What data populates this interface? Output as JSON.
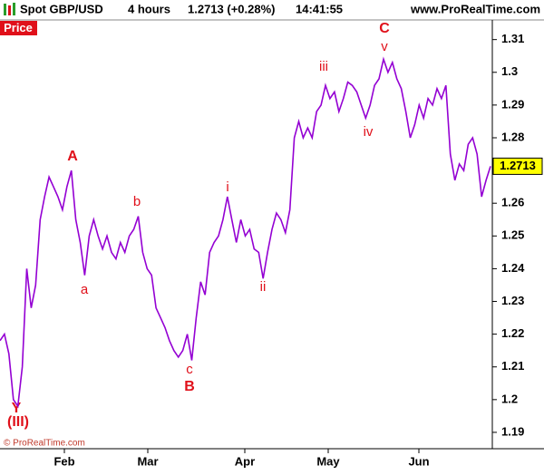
{
  "header": {
    "symbol": "Spot GBP/USD",
    "interval": "4 hours",
    "quote": "1.2713 (+0.28%)",
    "time": "14:41:55",
    "site": "www.ProRealTime.com"
  },
  "chart_data": {
    "type": "line",
    "label": "Price",
    "color": "#9400d3",
    "values": [
      1.218,
      1.22,
      1.214,
      1.2,
      1.198,
      1.21,
      1.24,
      1.228,
      1.235,
      1.255,
      1.262,
      1.268,
      1.265,
      1.262,
      1.258,
      1.265,
      1.27,
      1.255,
      1.248,
      1.238,
      1.25,
      1.255,
      1.25,
      1.246,
      1.25,
      1.245,
      1.243,
      1.248,
      1.245,
      1.25,
      1.252,
      1.256,
      1.245,
      1.24,
      1.238,
      1.228,
      1.225,
      1.222,
      1.218,
      1.215,
      1.213,
      1.215,
      1.22,
      1.212,
      1.225,
      1.236,
      1.232,
      1.245,
      1.248,
      1.25,
      1.255,
      1.262,
      1.255,
      1.248,
      1.255,
      1.25,
      1.252,
      1.246,
      1.245,
      1.237,
      1.245,
      1.252,
      1.257,
      1.255,
      1.251,
      1.258,
      1.28,
      1.285,
      1.28,
      1.283,
      1.28,
      1.288,
      1.29,
      1.296,
      1.292,
      1.294,
      1.288,
      1.292,
      1.297,
      1.296,
      1.294,
      1.29,
      1.286,
      1.29,
      1.296,
      1.298,
      1.304,
      1.3,
      1.303,
      1.298,
      1.295,
      1.288,
      1.28,
      1.284,
      1.29,
      1.286,
      1.292,
      1.29,
      1.295,
      1.292,
      1.296,
      1.275,
      1.267,
      1.272,
      1.27,
      1.278,
      1.28,
      1.275,
      1.262,
      1.267,
      1.2713
    ],
    "months": [
      "Feb",
      "Mar",
      "Apr",
      "May",
      "Jun"
    ],
    "ylim": [
      1.185,
      1.316
    ],
    "yticks": [
      1.19,
      1.2,
      1.21,
      1.22,
      1.23,
      1.24,
      1.25,
      1.26,
      1.27,
      1.28,
      1.29,
      1.3,
      1.31
    ],
    "last_price": 1.2713,
    "annotations": [
      "A",
      "a",
      "b",
      "B",
      "c",
      "i",
      "ii",
      "iii",
      "C",
      "v",
      "iv",
      "Y",
      "(III)"
    ]
  },
  "footer": "© ProRealTime.com"
}
